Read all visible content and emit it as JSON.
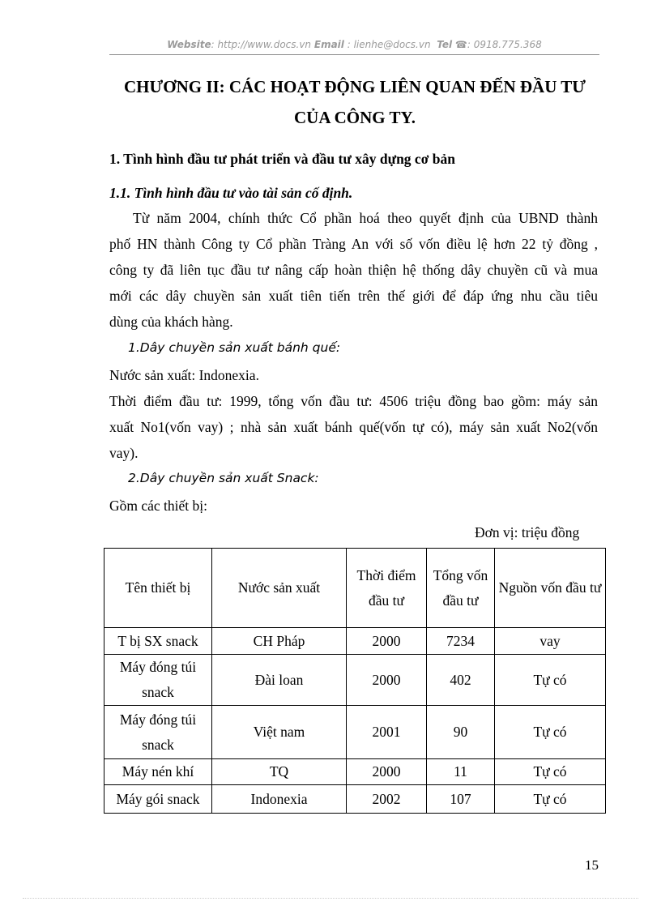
{
  "header": {
    "website_label": "Website",
    "website": ": http://www.docs.vn",
    "email_label": "Email",
    "email": " : lienhe@docs.vn",
    "tel_label": "Tel",
    "tel": ": 0918.775.368"
  },
  "title": {
    "line1": "CHƯƠNG II: CÁC HOẠT ĐỘNG LIÊN QUAN ĐẾN ĐẦU TƯ",
    "line2": "CỦA CÔNG TY."
  },
  "section1": "1. Tình hình đầu tư phát triển và  đầu tư xây dựng cơ bản",
  "section11": "1.1. Tình hình đầu tư vào tài sản cố định.",
  "paragraph": [
    "Từ năm 2004, chính thức Cổ phần hoá theo quyết định của UBND thành",
    "phố HN thành Công ty Cổ phần Tràng An với số vốn điều lệ hơn 22 tỷ đồng ,",
    "công ty đã liên  tục đầu tư nâng cấp hoàn thiện hệ thống dây chuyền cũ và mua",
    "mới các dây chuyền sản xuất  tiên tiến trên thế giới để đáp ứng nhu cầu tiêu",
    "dùng của khách hàng."
  ],
  "item1": {
    "title": "1.Dây chuyền sản xuất bánh quế:",
    "origin": "Nước sản xuất: Indonexia.",
    "lines": [
      "Thời điểm đầu tư: 1999, tổng vốn đầu tư: 4506 triệu đồng  bao gồm: máy sản",
      "xuất No1(vốn vay) ; nhà sản xuất bánh quế(vốn tự có), máy sản xuất No2(vốn",
      "vay)."
    ]
  },
  "item2": {
    "title": "2.Dây chuyền sản xuất Snack:",
    "intro": "Gồm các thiết bị:"
  },
  "unit": "Đơn vị:  triệu  đồng",
  "table": {
    "headers": [
      "Tên thiết bị",
      "Nước sản xuất",
      "Thời điểm đầu tư",
      "Tổng vốn đầu tư",
      "Nguồn vốn đầu tư"
    ],
    "rows": [
      [
        "T bị SX snack",
        "CH Pháp",
        "2000",
        "7234",
        "vay"
      ],
      [
        "Máy đóng túi snack",
        "Đài loan",
        "2000",
        "402",
        "Tự có"
      ],
      [
        "Máy đóng túi snack",
        "Việt nam",
        "2001",
        "90",
        "Tự có"
      ],
      [
        "Máy nén khí",
        "TQ",
        "2000",
        "11",
        "Tự có"
      ],
      [
        "Máy gói snack",
        "Indonexia",
        "2002",
        "107",
        "Tự có"
      ]
    ]
  },
  "page_number": "15"
}
